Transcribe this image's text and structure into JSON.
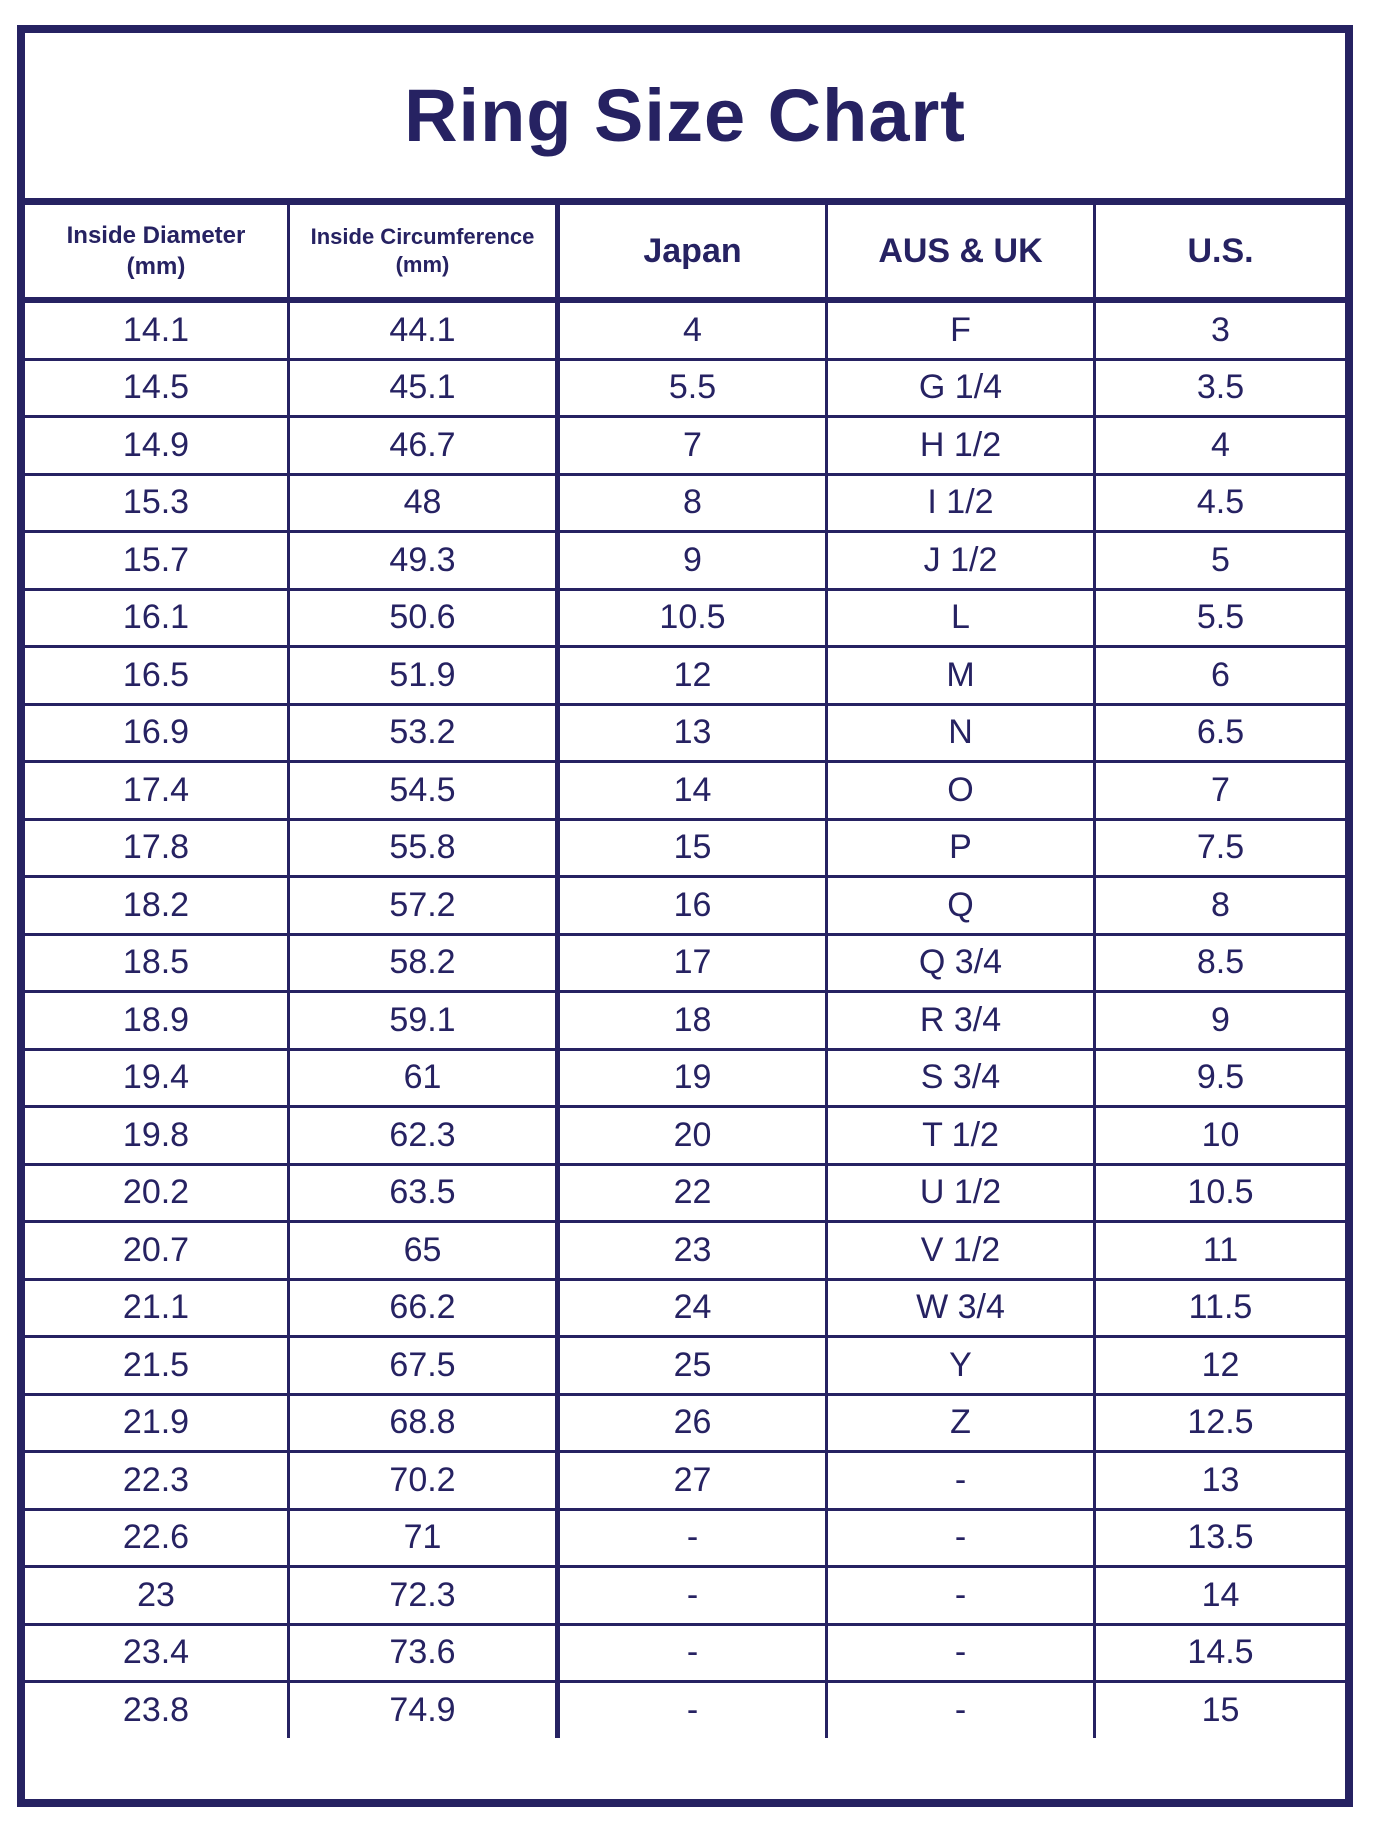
{
  "title": "Ring Size Chart",
  "colors": {
    "primary": "#262262",
    "background": "#ffffff"
  },
  "columns": [
    {
      "line1": "Inside Diameter",
      "line2": "(mm)"
    },
    {
      "line1": "Inside Circumference",
      "line2": "(mm)"
    },
    {
      "line1": "Japan"
    },
    {
      "line1": "AUS & UK"
    },
    {
      "line1": "U.S."
    }
  ],
  "rows": [
    [
      "14.1",
      "44.1",
      "4",
      "F",
      "3"
    ],
    [
      "14.5",
      "45.1",
      "5.5",
      "G 1/4",
      "3.5"
    ],
    [
      "14.9",
      "46.7",
      "7",
      "H 1/2",
      "4"
    ],
    [
      "15.3",
      "48",
      "8",
      "I 1/2",
      "4.5"
    ],
    [
      "15.7",
      "49.3",
      "9",
      "J 1/2",
      "5"
    ],
    [
      "16.1",
      "50.6",
      "10.5",
      "L",
      "5.5"
    ],
    [
      "16.5",
      "51.9",
      "12",
      "M",
      "6"
    ],
    [
      "16.9",
      "53.2",
      "13",
      "N",
      "6.5"
    ],
    [
      "17.4",
      "54.5",
      "14",
      "O",
      "7"
    ],
    [
      "17.8",
      "55.8",
      "15",
      "P",
      "7.5"
    ],
    [
      "18.2",
      "57.2",
      "16",
      "Q",
      "8"
    ],
    [
      "18.5",
      "58.2",
      "17",
      "Q 3/4",
      "8.5"
    ],
    [
      "18.9",
      "59.1",
      "18",
      "R 3/4",
      "9"
    ],
    [
      "19.4",
      "61",
      "19",
      "S 3/4",
      "9.5"
    ],
    [
      "19.8",
      "62.3",
      "20",
      "T 1/2",
      "10"
    ],
    [
      "20.2",
      "63.5",
      "22",
      "U 1/2",
      "10.5"
    ],
    [
      "20.7",
      "65",
      "23",
      "V 1/2",
      "11"
    ],
    [
      "21.1",
      "66.2",
      "24",
      "W 3/4",
      "11.5"
    ],
    [
      "21.5",
      "67.5",
      "25",
      "Y",
      "12"
    ],
    [
      "21.9",
      "68.8",
      "26",
      "Z",
      "12.5"
    ],
    [
      "22.3",
      "70.2",
      "27",
      "-",
      "13"
    ],
    [
      "22.6",
      "71",
      "-",
      "-",
      "13.5"
    ],
    [
      "23",
      "72.3",
      "-",
      "-",
      "14"
    ],
    [
      "23.4",
      "73.6",
      "-",
      "-",
      "14.5"
    ],
    [
      "23.8",
      "74.9",
      "-",
      "-",
      "15"
    ]
  ]
}
